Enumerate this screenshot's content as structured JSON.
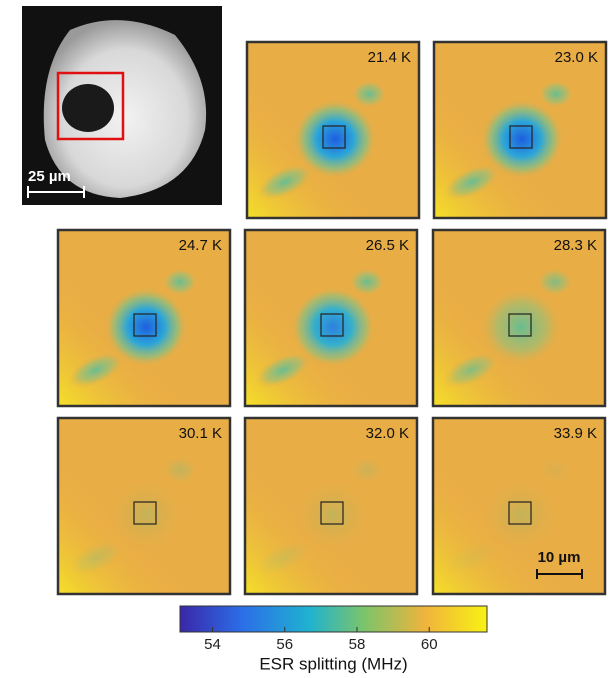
{
  "overview_scale_bar": "25 µm",
  "maps": [
    "21.4 K",
    "23.0 K",
    "24.7 K",
    "26.5 K",
    "28.3 K",
    "30.1 K",
    "32.0 K",
    "33.9 K"
  ],
  "map_scale_bar": "10 µm",
  "colorbar": {
    "label": "ESR splitting (MHz)",
    "lim": [
      53.1,
      61.6
    ],
    "ticks": [
      54,
      56,
      58,
      60
    ]
  }
}
